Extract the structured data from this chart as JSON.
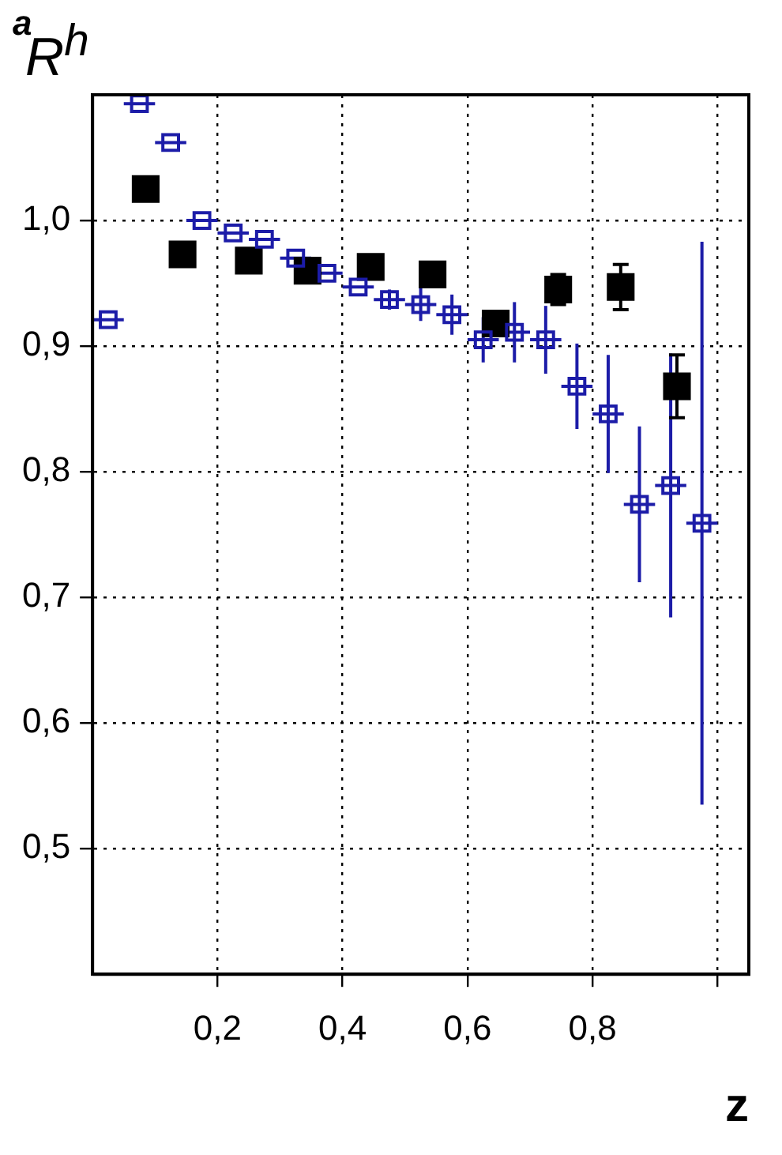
{
  "chart_data": {
    "type": "scatter",
    "ylabel": "R$^{h}$",
    "xlabel": "z",
    "annotations": [
      "a"
    ],
    "xlim": [
      0,
      1.05
    ],
    "ylim": [
      0.4,
      1.1
    ],
    "xticks": [
      {
        "value": 0.2,
        "label": "0,2"
      },
      {
        "value": 0.4,
        "label": "0,4"
      },
      {
        "value": 0.6,
        "label": "0,6"
      },
      {
        "value": 0.8,
        "label": "0,8"
      },
      {
        "value": 1.0,
        "label": null
      }
    ],
    "yticks": [
      {
        "value": 0.5,
        "label": "0,5"
      },
      {
        "value": 0.6,
        "label": "0,6"
      },
      {
        "value": 0.7,
        "label": "0,7"
      },
      {
        "value": 0.8,
        "label": "0,8"
      },
      {
        "value": 0.9,
        "label": "0,9"
      },
      {
        "value": 1.0,
        "label": "1,0"
      }
    ],
    "grid": true,
    "marker": "square",
    "series": [
      {
        "color": "#1c1ca8",
        "x": [
          0.025,
          0.075,
          0.125,
          0.175,
          0.225,
          0.275,
          0.325,
          0.375,
          0.425,
          0.475,
          0.525,
          0.575,
          0.625,
          0.675,
          0.725,
          0.775,
          0.825,
          0.875,
          0.925,
          0.975
        ],
        "values": [
          0.921,
          1.093,
          1.062,
          1.0,
          0.99,
          0.985,
          0.97,
          0.958,
          0.947,
          0.937,
          0.933,
          0.925,
          0.905,
          0.911,
          0.905,
          0.868,
          0.846,
          0.774,
          0.789,
          0.759
        ],
        "errors": [
          null,
          null,
          null,
          null,
          null,
          null,
          null,
          null,
          null,
          0.008,
          0.013,
          0.016,
          0.018,
          0.024,
          0.027,
          0.034,
          0.047,
          0.062,
          0.105,
          0.224
        ],
        "xerrors": [
          0.025,
          0.025,
          0.025,
          0.025,
          0.025,
          0.025,
          0.025,
          0.025,
          0.025,
          0.025,
          0.025,
          0.025,
          0.025,
          0.025,
          0.025,
          0.025,
          0.025,
          0.025,
          0.025,
          0.025
        ]
      },
      {
        "color": "#000000",
        "x": [
          0.085,
          0.144,
          0.25,
          0.344,
          0.445,
          0.544,
          0.645,
          0.745,
          0.845,
          0.935
        ],
        "values": [
          1.025,
          0.973,
          0.968,
          0.96,
          0.963,
          0.957,
          0.918,
          0.945,
          0.947,
          0.868
        ],
        "errors": [
          null,
          null,
          null,
          null,
          null,
          null,
          null,
          0.012,
          0.018,
          0.025
        ]
      }
    ]
  }
}
